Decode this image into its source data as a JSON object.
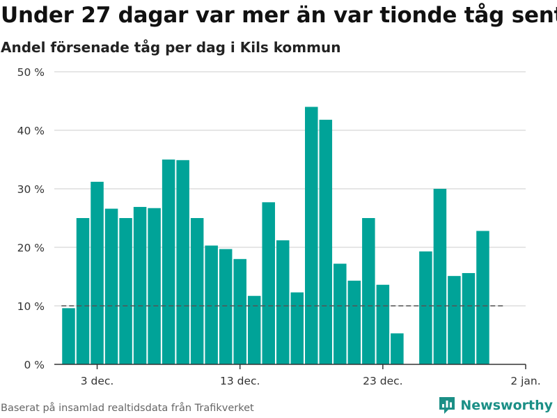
{
  "header": {
    "title": "Under 27 dagar var mer än var tionde tåg sent",
    "subtitle": "Andel försenade tåg per dag i Kils kommun"
  },
  "footer": {
    "source": "Baserat på insamlad realtidsdata från Trafikverket",
    "brand": "Newsworthy"
  },
  "colors": {
    "bar": "#00a398",
    "grid": "#dddddd",
    "reference_line": "#555555",
    "brand": "#1b8f86"
  },
  "chart_data": {
    "type": "bar",
    "title": "Under 27 dagar var mer än var tionde tåg sent",
    "subtitle": "Andel försenade tåg per dag i Kils kommun",
    "x_unit": "day",
    "x": [
      "2024-12-01",
      "2024-12-02",
      "2024-12-03",
      "2024-12-04",
      "2024-12-05",
      "2024-12-06",
      "2024-12-07",
      "2024-12-08",
      "2024-12-09",
      "2024-12-10",
      "2024-12-11",
      "2024-12-12",
      "2024-12-13",
      "2024-12-14",
      "2024-12-15",
      "2024-12-16",
      "2024-12-17",
      "2024-12-18",
      "2024-12-19",
      "2024-12-20",
      "2024-12-21",
      "2024-12-22",
      "2024-12-23",
      "2024-12-24",
      "2024-12-25",
      "2024-12-26",
      "2024-12-27",
      "2024-12-28",
      "2024-12-29",
      "2024-12-30",
      "2024-12-31"
    ],
    "values": [
      9.6,
      25.0,
      31.2,
      26.6,
      25.0,
      26.9,
      26.7,
      35.0,
      34.9,
      25.0,
      20.3,
      19.7,
      18.0,
      11.7,
      27.7,
      21.2,
      12.3,
      44.0,
      41.8,
      17.2,
      14.3,
      25.0,
      13.6,
      5.3,
      null,
      19.3,
      30.0,
      15.1,
      15.6,
      22.8,
      null
    ],
    "xlim": [
      "2024-11-30",
      "2025-01-02"
    ],
    "ylim": [
      0,
      50
    ],
    "y_unit": "%",
    "y_ticks": [
      0,
      10,
      20,
      30,
      40,
      50
    ],
    "y_tick_labels": [
      "0 %",
      "10 %",
      "20 %",
      "30 %",
      "40 %",
      "50 %"
    ],
    "x_ticks": [
      "2024-12-03",
      "2024-12-13",
      "2024-12-23",
      "2025-01-02"
    ],
    "x_tick_labels": [
      "3 dec.",
      "13 dec.",
      "23 dec.",
      "2 jan."
    ],
    "reference_line": {
      "value": 10,
      "from": "2024-12-01",
      "to": "2024-12-31",
      "style": "dashed"
    },
    "grid": true,
    "legend": "none"
  }
}
